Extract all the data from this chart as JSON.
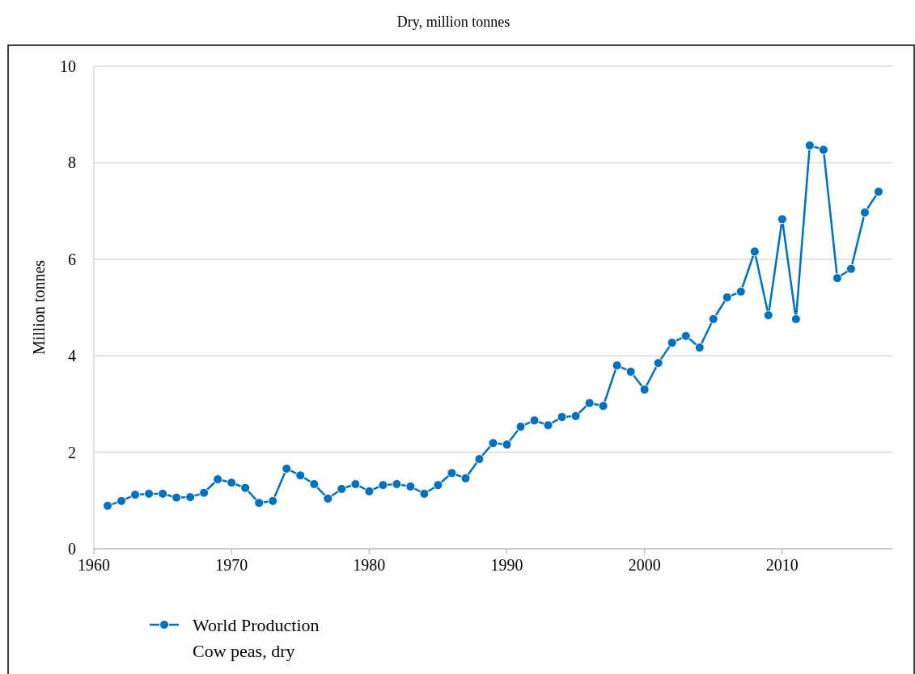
{
  "chart_data": {
    "type": "line",
    "title": "Dry, million tonnes",
    "ylabel": "Million tonnes",
    "x": [
      1961,
      1962,
      1963,
      1964,
      1965,
      1966,
      1967,
      1968,
      1969,
      1970,
      1971,
      1972,
      1973,
      1974,
      1975,
      1976,
      1977,
      1978,
      1979,
      1980,
      1981,
      1982,
      1983,
      1984,
      1985,
      1986,
      1987,
      1988,
      1989,
      1990,
      1991,
      1992,
      1993,
      1994,
      1995,
      1996,
      1997,
      1998,
      1999,
      2000,
      2001,
      2002,
      2003,
      2004,
      2005,
      2006,
      2007,
      2008,
      2009,
      2010,
      2011,
      2012,
      2013,
      2014,
      2015,
      2016,
      2017
    ],
    "series": [
      {
        "name": "World Production\nCow peas, dry",
        "color": "#0070c0",
        "values": [
          0.89,
          0.99,
          1.12,
          1.14,
          1.14,
          1.06,
          1.07,
          1.16,
          1.44,
          1.37,
          1.26,
          0.95,
          0.99,
          1.66,
          1.52,
          1.34,
          1.04,
          1.24,
          1.34,
          1.19,
          1.32,
          1.34,
          1.29,
          1.14,
          1.32,
          1.57,
          1.46,
          1.86,
          2.19,
          2.16,
          2.53,
          2.66,
          2.56,
          2.73,
          2.75,
          3.02,
          2.96,
          3.8,
          3.67,
          3.3,
          3.85,
          4.27,
          4.41,
          4.17,
          4.76,
          5.21,
          5.33,
          6.16,
          4.84,
          6.83,
          4.76,
          8.36,
          8.27,
          5.61,
          5.8,
          6.97,
          7.4
        ]
      }
    ],
    "xlim": [
      1960,
      2018
    ],
    "xticks": [
      1960,
      1970,
      1980,
      1990,
      2000,
      2010
    ],
    "ylim": [
      0,
      10
    ],
    "yticks": [
      0,
      2,
      4,
      6,
      8,
      10
    ],
    "grid": "y",
    "legend": "bottom left",
    "marker": "circle",
    "line_style": "solid"
  }
}
